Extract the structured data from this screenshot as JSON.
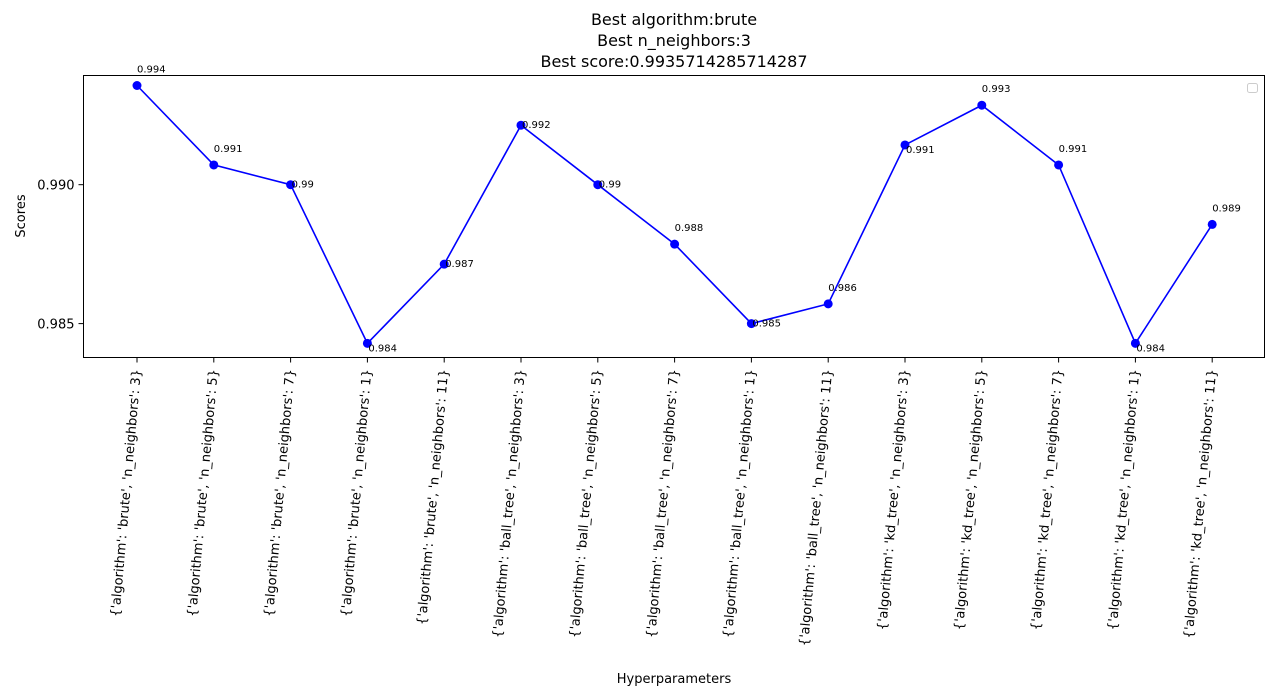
{
  "chart_data": {
    "type": "line",
    "title_lines": [
      "Best algorithm:brute",
      "Best n_neighbors:3",
      "Best score:0.9935714285714287"
    ],
    "xlabel": "Hyperparameters",
    "ylabel": "Scores",
    "categories": [
      "{'algorithm': 'brute', 'n_neighbors': 3}",
      "{'algorithm': 'brute', 'n_neighbors': 5}",
      "{'algorithm': 'brute', 'n_neighbors': 7}",
      "{'algorithm': 'brute', 'n_neighbors': 1}",
      "{'algorithm': 'brute', 'n_neighbors': 11}",
      "{'algorithm': 'ball_tree', 'n_neighbors': 3}",
      "{'algorithm': 'ball_tree', 'n_neighbors': 5}",
      "{'algorithm': 'ball_tree', 'n_neighbors': 7}",
      "{'algorithm': 'ball_tree', 'n_neighbors': 1}",
      "{'algorithm': 'ball_tree', 'n_neighbors': 11}",
      "{'algorithm': 'kd_tree', 'n_neighbors': 3}",
      "{'algorithm': 'kd_tree', 'n_neighbors': 5}",
      "{'algorithm': 'kd_tree', 'n_neighbors': 7}",
      "{'algorithm': 'kd_tree', 'n_neighbors': 1}",
      "{'algorithm': 'kd_tree', 'n_neighbors': 11}"
    ],
    "values": [
      0.99357,
      0.99071,
      0.99,
      0.98429,
      0.98714,
      0.99214,
      0.99,
      0.98786,
      0.985,
      0.98571,
      0.99143,
      0.99286,
      0.99071,
      0.98429,
      0.98857
    ],
    "data_labels": [
      "0.994",
      "0.991",
      "0.99",
      "0.984",
      "0.987",
      "0.992",
      "0.99",
      "0.988",
      "0.985",
      "0.986",
      "0.991",
      "0.993",
      "0.991",
      "0.984",
      "0.989"
    ],
    "label_position": [
      "above",
      "above",
      "right",
      "below",
      "right",
      "right",
      "right",
      "above",
      "right",
      "above",
      "below",
      "above",
      "above",
      "below",
      "above"
    ],
    "yticks": [
      0.985,
      0.99
    ],
    "ytick_labels": [
      "0.985",
      "0.990"
    ],
    "ylim": [
      0.98378,
      0.99393
    ],
    "series_color": "#0000ff",
    "grid": false,
    "legend": "top-right (empty)"
  }
}
